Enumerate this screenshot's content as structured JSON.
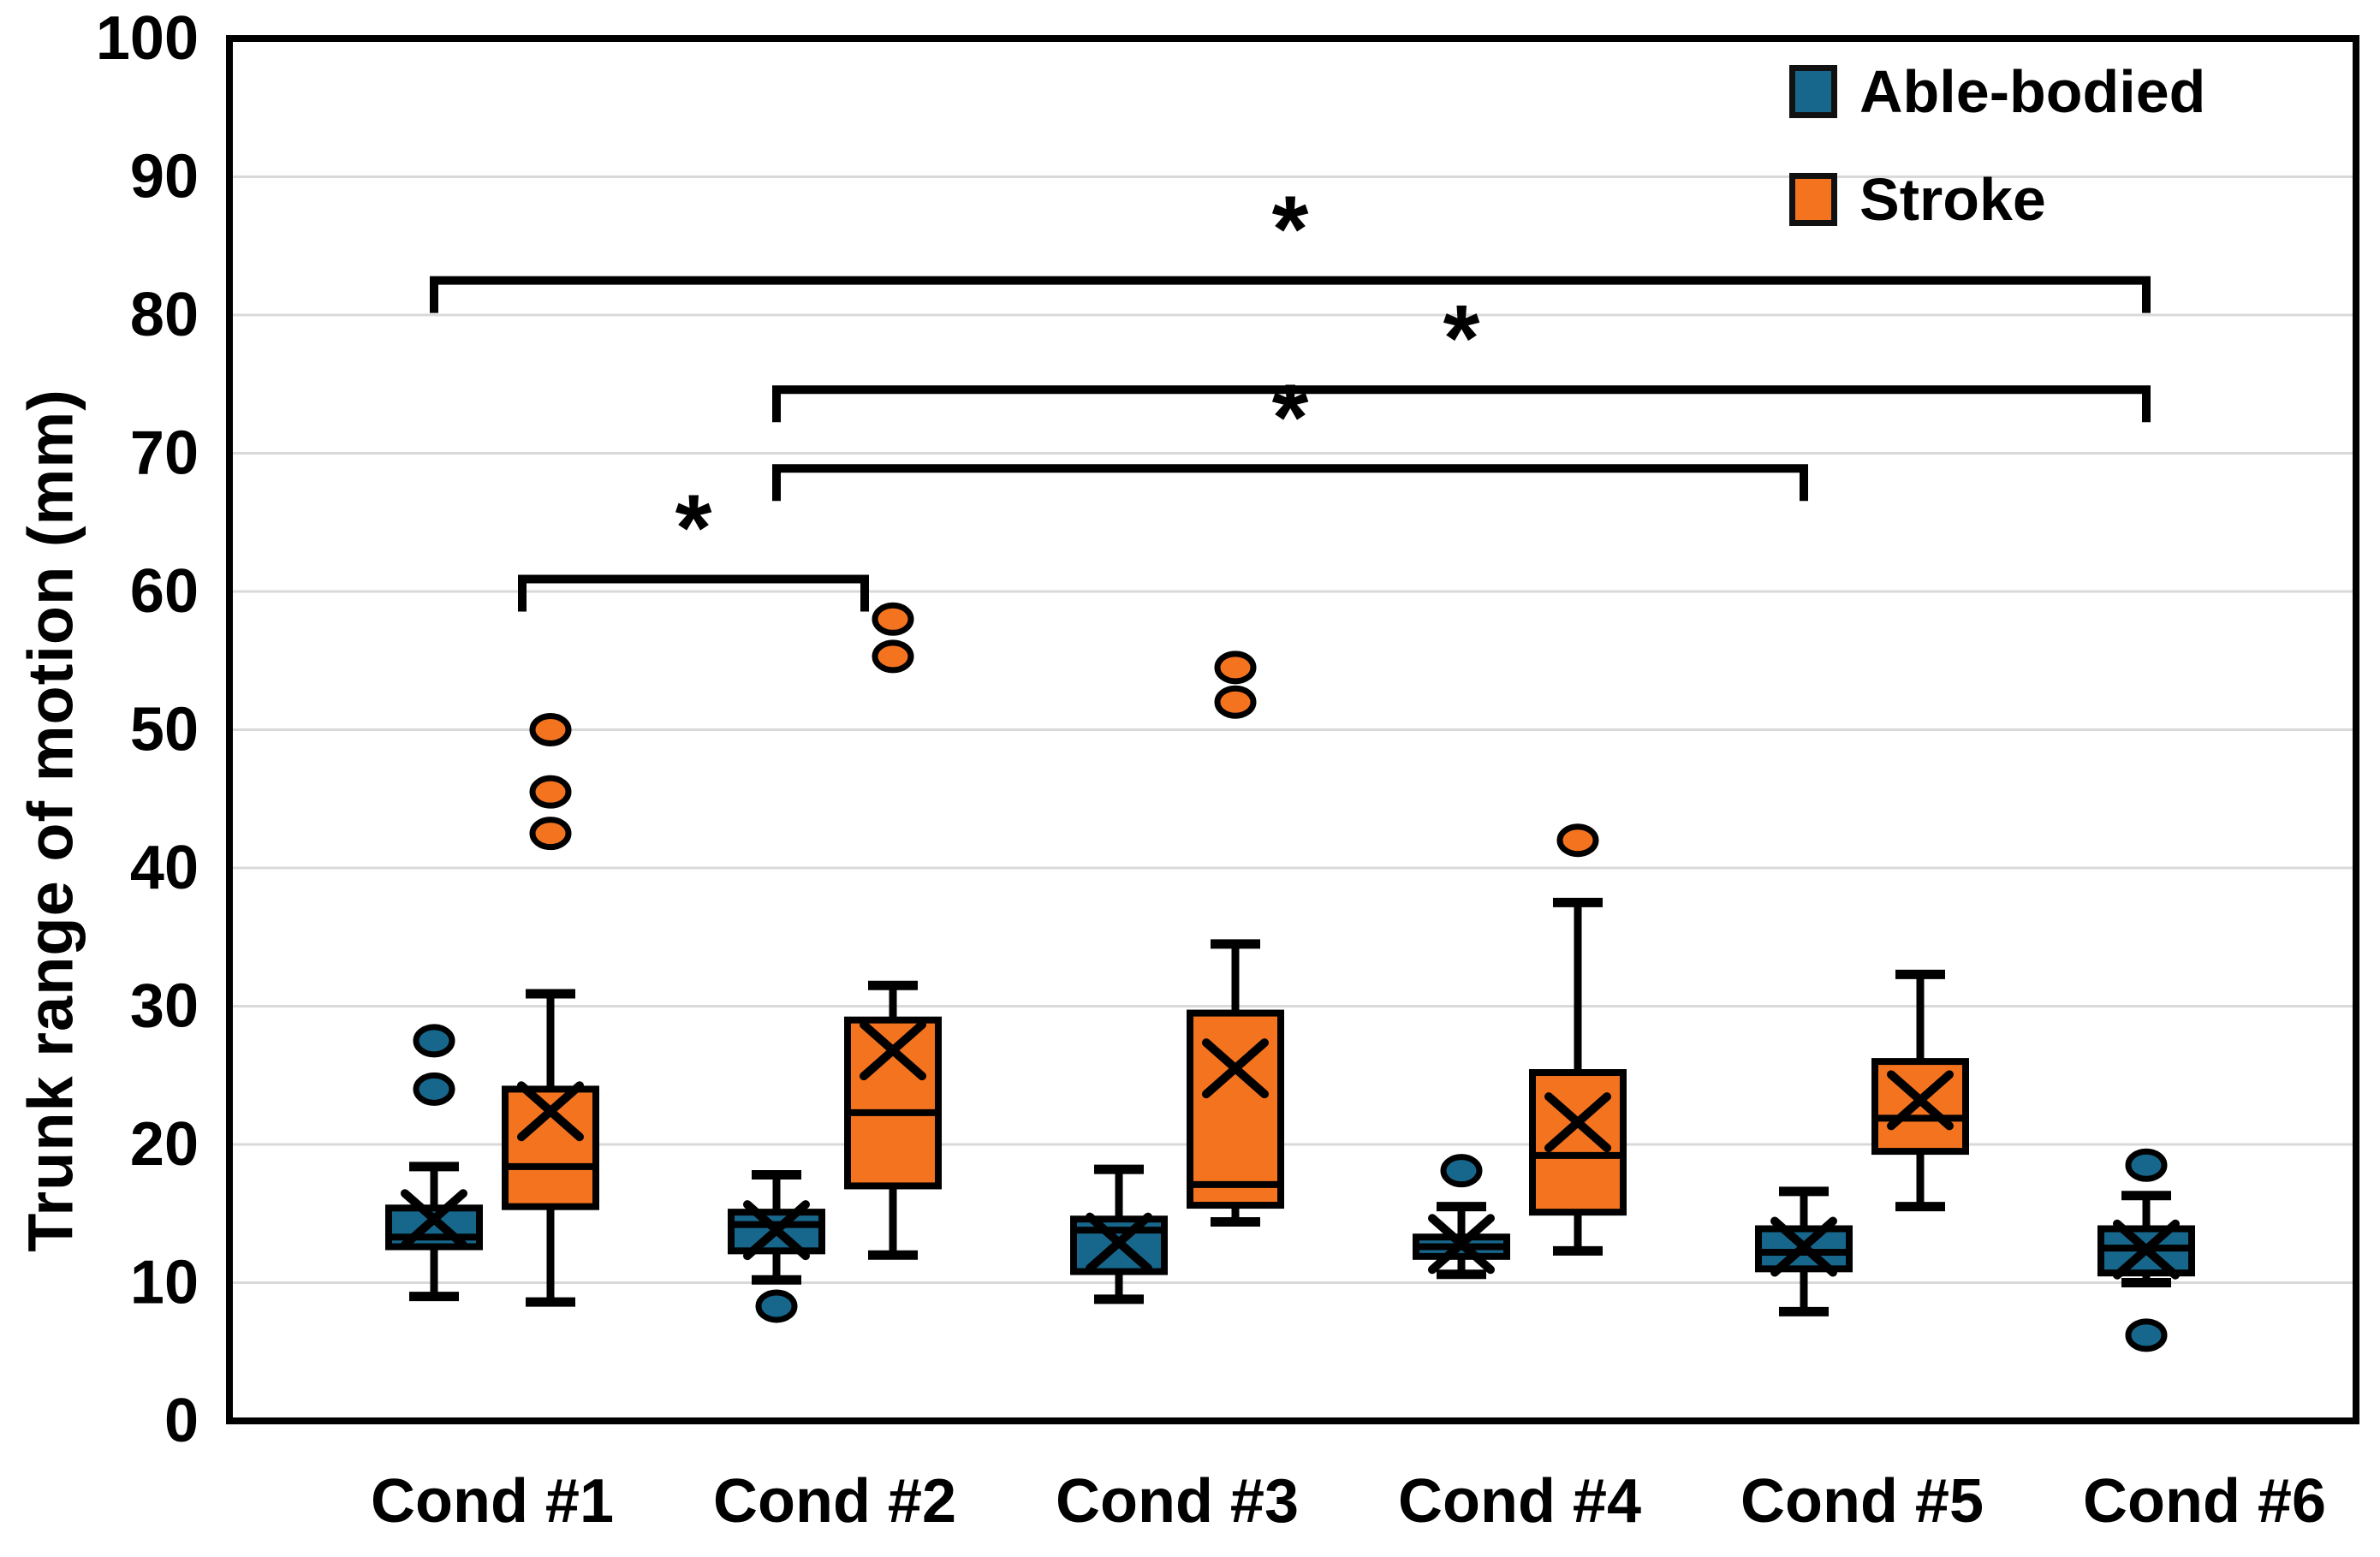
{
  "chart_data": {
    "type": "boxplot",
    "title": "",
    "ylabel": "Trunk range of motion (mm)",
    "xlabel": "",
    "ylim": [
      0,
      100
    ],
    "yticks": [
      0,
      10,
      20,
      30,
      40,
      50,
      60,
      70,
      80,
      90,
      100
    ],
    "grid": "horizontal-light-gray",
    "legend_position": "top-right-inside",
    "categories": [
      "Cond #1",
      "Cond #2",
      "Cond #3",
      "Cond #4",
      "Cond #5",
      "Cond #6"
    ],
    "legend": [
      {
        "label": "Able-bodied",
        "color": "#17678c"
      },
      {
        "label": "Stroke",
        "color": "#f4731f"
      }
    ],
    "series": [
      {
        "name": "Able-bodied",
        "color": "#17678c",
        "boxes": [
          {
            "category": "Cond #1",
            "whisker_low": 9.0,
            "q1": 12.6,
            "median": 13.3,
            "q3": 15.4,
            "whisker_high": 18.4,
            "mean": 14.6,
            "outliers": [
              24.0,
              27.5
            ]
          },
          {
            "category": "Cond #2",
            "whisker_low": 10.2,
            "q1": 12.3,
            "median": 14.2,
            "q3": 15.1,
            "whisker_high": 17.8,
            "mean": 13.8,
            "outliers": [
              8.3
            ]
          },
          {
            "category": "Cond #3",
            "whisker_low": 8.8,
            "q1": 10.8,
            "median": 13.8,
            "q3": 14.6,
            "whisker_high": 18.2,
            "mean": 12.9,
            "outliers": []
          },
          {
            "category": "Cond #4",
            "whisker_low": 10.6,
            "q1": 11.9,
            "median": 12.6,
            "q3": 13.3,
            "whisker_high": 15.5,
            "mean": 12.8,
            "outliers": [
              18.1
            ]
          },
          {
            "category": "Cond #5",
            "whisker_low": 7.9,
            "q1": 11.0,
            "median": 12.2,
            "q3": 13.9,
            "whisker_high": 16.6,
            "mean": 12.6,
            "outliers": []
          },
          {
            "category": "Cond #6",
            "whisker_low": 10.0,
            "q1": 10.7,
            "median": 12.5,
            "q3": 13.9,
            "whisker_high": 16.3,
            "mean": 12.4,
            "outliers": [
              18.5,
              6.2
            ]
          }
        ]
      },
      {
        "name": "Stroke",
        "color": "#f4731f",
        "boxes": [
          {
            "category": "Cond #1",
            "whisker_low": 8.6,
            "q1": 15.5,
            "median": 18.4,
            "q3": 24.0,
            "whisker_high": 30.9,
            "mean": 22.4,
            "outliers": [
              42.5,
              45.5,
              50.0
            ]
          },
          {
            "category": "Cond #2",
            "whisker_low": 12.0,
            "q1": 17.0,
            "median": 22.3,
            "q3": 29.0,
            "whisker_high": 31.5,
            "mean": 26.8,
            "outliers": [
              55.3,
              58.0
            ]
          },
          {
            "category": "Cond #3",
            "whisker_low": 14.4,
            "q1": 15.6,
            "median": 17.1,
            "q3": 29.5,
            "whisker_high": 34.5,
            "mean": 25.5,
            "outliers": [
              52.0,
              54.5
            ]
          },
          {
            "category": "Cond #4",
            "whisker_low": 12.3,
            "q1": 15.1,
            "median": 19.2,
            "q3": 25.2,
            "whisker_high": 37.5,
            "mean": 21.6,
            "outliers": [
              42.0
            ]
          },
          {
            "category": "Cond #5",
            "whisker_low": 15.5,
            "q1": 19.5,
            "median": 21.9,
            "q3": 26.0,
            "whisker_high": 32.3,
            "mean": 23.2,
            "outliers": []
          },
          null
        ]
      }
    ],
    "significance_brackets": [
      {
        "label": "*",
        "from_category": "Cond #1",
        "to_category": "Cond #6",
        "from_series": "Able-bodied",
        "to_series": "Able-bodied",
        "height": 82.5
      },
      {
        "label": "*",
        "from_category": "Cond #2",
        "to_category": "Cond #6",
        "from_series": "Able-bodied",
        "to_series": "Able-bodied",
        "height": 74.6
      },
      {
        "label": "*",
        "from_category": "Cond #2",
        "to_category": "Cond #5",
        "from_series": "Able-bodied",
        "to_series": "Able-bodied",
        "height": 68.9
      },
      {
        "label": "*",
        "from_category": "Cond #1",
        "to_category": "Cond #2",
        "from_series": "Stroke",
        "to_series": "Stroke",
        "height": 60.9,
        "x_offset": -33
      }
    ]
  }
}
